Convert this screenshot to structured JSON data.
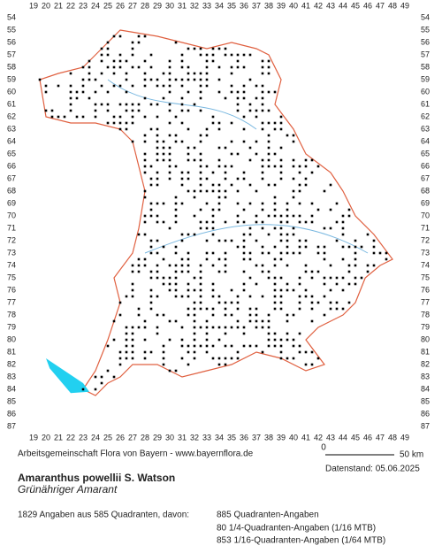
{
  "map": {
    "x_labels": [
      19,
      20,
      21,
      22,
      23,
      24,
      25,
      26,
      27,
      28,
      29,
      30,
      31,
      32,
      33,
      34,
      35,
      36,
      37,
      38,
      39,
      40,
      41,
      42,
      43,
      44,
      45,
      46,
      47,
      48,
      49
    ],
    "y_labels": [
      54,
      55,
      56,
      57,
      58,
      59,
      60,
      61,
      62,
      63,
      64,
      65,
      66,
      67,
      68,
      69,
      70,
      71,
      72,
      73,
      74,
      75,
      76,
      77,
      78,
      79,
      80,
      81,
      82,
      83,
      84,
      85,
      86,
      87
    ],
    "scale": {
      "start": "0",
      "end": "50 km"
    },
    "credit": "Arbeitsgemeinschaft Flora von Bayern - www.bayernflora.de",
    "date": "Datenstand: 05.06.2025",
    "species": "Amaranthus powellii S. Watson",
    "common_name": "Grünähriger Amarant",
    "summary": "1829 Angaben aus 585 Quadranten, davon:",
    "counts": [
      "885 Quadranten-Angaben",
      "80 1/4-Quadranten-Angaben (1/16 MTB)",
      "853 1/16-Quadranten-Angaben (1/64 MTB)"
    ]
  }
}
